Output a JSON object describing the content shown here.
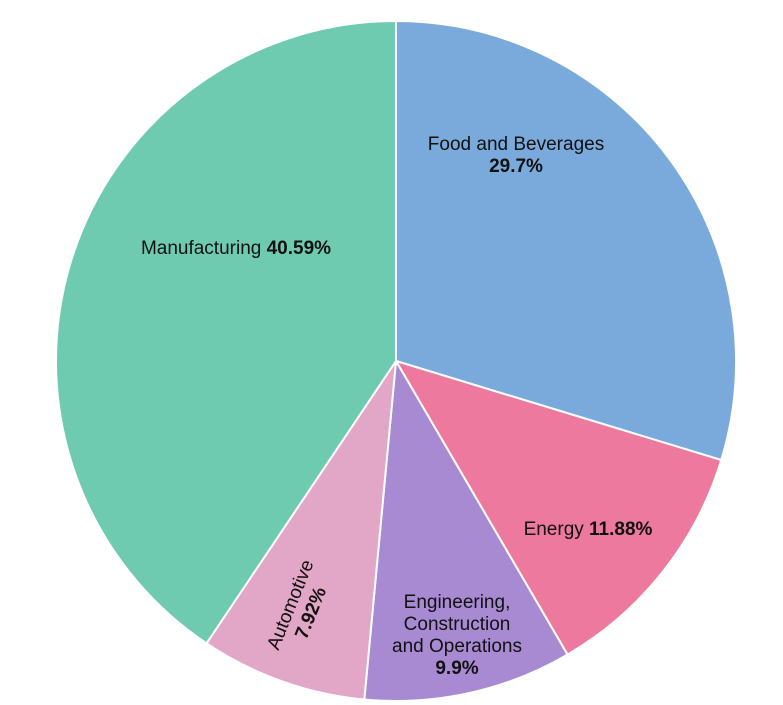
{
  "chart_data": {
    "type": "pie",
    "title": "",
    "start_angle_deg": 0,
    "direction": "clockwise",
    "slices": [
      {
        "label": "Food and Beverages",
        "value": 29.7,
        "value_label": "29.7%",
        "color": "#7aaadb"
      },
      {
        "label": "Energy",
        "value": 11.88,
        "value_label": "11.88%",
        "color": "#ee799e"
      },
      {
        "label": "Engineering, Construction and Operations",
        "label_lines": [
          "Engineering,",
          "Construction",
          "and Operations"
        ],
        "value": 9.9,
        "value_label": "9.9%",
        "color": "#a88ad3"
      },
      {
        "label": "Automotive",
        "value": 7.92,
        "value_label": "7.92%",
        "color": "#e2a6c6"
      },
      {
        "label": "Manufacturing",
        "value": 40.59,
        "value_label": "40.59%",
        "color": "#6ecbb0"
      }
    ]
  }
}
